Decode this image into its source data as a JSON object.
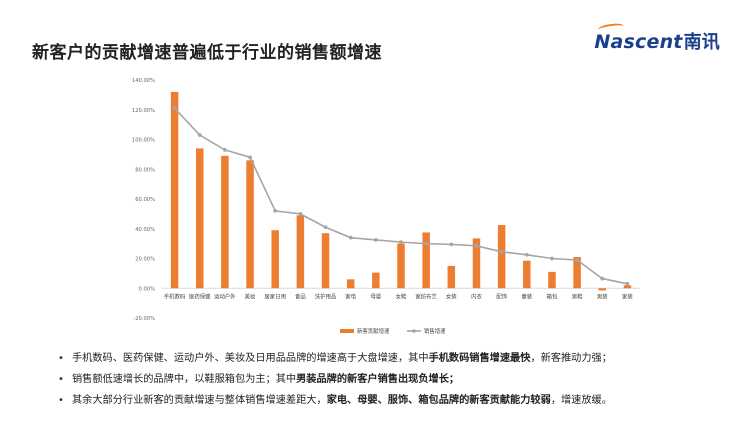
{
  "header": {
    "title": "新客户的贡献增速普遍低于行业的销售额增速"
  },
  "logo": {
    "brand_latin": "Nascent",
    "brand_cn": "南讯",
    "color": "#1c3f8c",
    "accent": "#e87f2c"
  },
  "chart_data": {
    "type": "bar",
    "categories": [
      "手机数码",
      "医药保健",
      "运动户外",
      "美妆",
      "居家日用",
      "食品",
      "洗护用品",
      "家电",
      "母婴",
      "女鞋",
      "家纺布艺",
      "女装",
      "内衣",
      "配饰",
      "童装",
      "箱包",
      "男鞋",
      "男装",
      "家装"
    ],
    "series": [
      {
        "name": "新客贡献增速",
        "type": "bar",
        "color": "#ed7d31",
        "values": [
          132,
          94,
          89,
          86,
          39,
          49,
          37,
          6,
          10.5,
          30,
          37.5,
          15,
          33.5,
          42.5,
          18.5,
          11,
          21,
          -1.5,
          2
        ]
      },
      {
        "name": "销售增速",
        "type": "line",
        "color": "#a5a5a5",
        "values": [
          121,
          103,
          93,
          88,
          52,
          50,
          41,
          34,
          32.5,
          31,
          30,
          29.5,
          28.5,
          24.5,
          22.5,
          20,
          19,
          6.5,
          3
        ]
      }
    ],
    "y_ticks": [
      "140.00%",
      "120.00%",
      "100.00%",
      "80.00%",
      "60.00%",
      "40.00%",
      "20.00%",
      "0.00%",
      "-20.00%"
    ],
    "ylim": [
      -20,
      140
    ],
    "legend_position": "bottom",
    "grid": false
  },
  "bullets": [
    [
      {
        "t": "手机数码、医药保健、运动户外、美妆及日用品品牌的增速高于大盘增速，其中",
        "b": false
      },
      {
        "t": "手机数码销售增速最快",
        "b": true
      },
      {
        "t": "，新客推动力强；",
        "b": false
      }
    ],
    [
      {
        "t": "销售额低速增长的品牌中，以鞋服箱包为主；其中",
        "b": false
      },
      {
        "t": "男装品牌的新客户销售出现负增长；",
        "b": true
      }
    ],
    [
      {
        "t": "其余大部分行业新客的贡献增速与整体销售增速差距大，",
        "b": false
      },
      {
        "t": "家电、母婴、服饰、箱包品牌的新客贡献能力较弱",
        "b": true
      },
      {
        "t": "，增速放缓。",
        "b": false
      }
    ]
  ]
}
